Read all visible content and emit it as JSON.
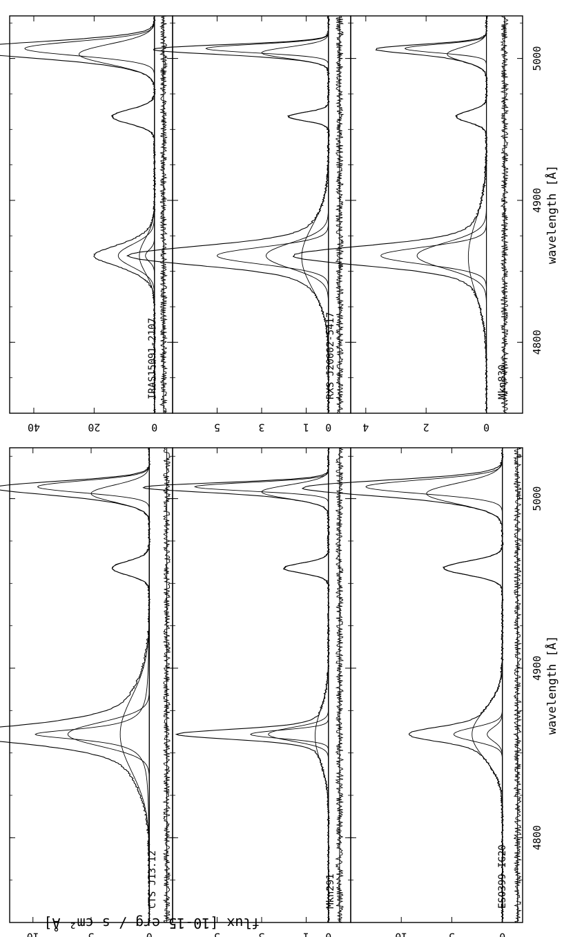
{
  "figure": {
    "y_axis_label": "flux  [10-15   erg  /  s cm² Å]",
    "x_axis_label": "wavelength [Å]"
  },
  "chart_data": [
    {
      "type": "line",
      "panel_label": "CTS J13.12",
      "xlabel": "wavelength [Å]",
      "xlim": [
        4750,
        5030
      ],
      "xticks": [
        4800,
        4900,
        5000
      ],
      "xticklabels": [
        "4800",
        "4900",
        "5000"
      ],
      "ylim": [
        -2,
        12
      ],
      "yticks": [
        0,
        5,
        10
      ],
      "yticklabels": [
        "0",
        "5",
        "10"
      ],
      "offset": -1.5,
      "lines": [
        {
          "center": 4861,
          "amp": 9.8,
          "sigma": 4,
          "shape": "lorentz"
        },
        {
          "center": 4861,
          "amp": 7.0,
          "sigma": 7,
          "shape": "gauss"
        },
        {
          "center": 4861,
          "amp": 2.5,
          "sigma": 22,
          "shape": "gauss"
        },
        {
          "center": 4959,
          "amp": 3.2,
          "sigma": 4,
          "shape": "gauss"
        },
        {
          "center": 5007,
          "amp": 9.6,
          "sigma": 3.5,
          "shape": "gauss"
        },
        {
          "center": 5003,
          "amp": 5.0,
          "sigma": 5,
          "shape": "gauss"
        }
      ]
    },
    {
      "type": "line",
      "panel_label": "Mkn291",
      "xlabel": "wavelength [Å]",
      "xlim": [
        4750,
        5030
      ],
      "xticks": [
        4800,
        4900,
        5000
      ],
      "xticklabels": [
        "4800",
        "4900",
        "5000"
      ],
      "ylim": [
        -1,
        7
      ],
      "yticks": [
        0,
        1,
        3,
        5
      ],
      "yticklabels": [
        "0",
        "1",
        "3",
        "5"
      ],
      "offset": -0.5,
      "lines": [
        {
          "center": 4861,
          "amp": 3.5,
          "sigma": 2.5,
          "shape": "gauss"
        },
        {
          "center": 4861,
          "amp": 2.7,
          "sigma": 4,
          "shape": "gauss"
        },
        {
          "center": 4860,
          "amp": 0.6,
          "sigma": 15,
          "shape": "gauss"
        },
        {
          "center": 4959,
          "amp": 2.0,
          "sigma": 3,
          "shape": "gauss"
        },
        {
          "center": 5007,
          "amp": 6.0,
          "sigma": 2.5,
          "shape": "gauss"
        },
        {
          "center": 5004,
          "amp": 3.0,
          "sigma": 4,
          "shape": "gauss"
        }
      ]
    },
    {
      "type": "line",
      "panel_label": "ESO399-IG20",
      "xlabel": "wavelength [Å]",
      "xlim": [
        4750,
        5030
      ],
      "xticks": [
        4800,
        4900,
        5000
      ],
      "xticklabels": [
        "4800",
        "4900",
        "5000"
      ],
      "ylim": [
        -2,
        15
      ],
      "yticks": [
        0,
        5,
        10
      ],
      "yticklabels": [
        "0",
        "5",
        "10"
      ],
      "offset": -1.5,
      "lines": [
        {
          "center": 4861,
          "amp": 4.8,
          "sigma": 4,
          "shape": "gauss"
        },
        {
          "center": 4861,
          "amp": 3.0,
          "sigma": 14,
          "shape": "gauss"
        },
        {
          "center": 4861,
          "amp": 1.5,
          "sigma": 4,
          "shape": "gauss"
        },
        {
          "center": 4959,
          "amp": 5.8,
          "sigma": 4,
          "shape": "gauss"
        },
        {
          "center": 5007,
          "amp": 13.5,
          "sigma": 4,
          "shape": "gauss"
        },
        {
          "center": 5003,
          "amp": 7.5,
          "sigma": 6,
          "shape": "gauss"
        }
      ]
    },
    {
      "type": "line",
      "panel_label": "IRAS15091-2107",
      "xlabel": "wavelength [Å]",
      "xlim": [
        4750,
        5030
      ],
      "xticks": [
        4800,
        4900,
        5000
      ],
      "xticklabels": [
        "4800",
        "4900",
        "5000"
      ],
      "ylim": [
        -6,
        48
      ],
      "yticks": [
        0,
        20,
        40
      ],
      "yticklabels": [
        "0",
        "20",
        "40"
      ],
      "offset": -3,
      "lines": [
        {
          "center": 4861,
          "amp": 12.0,
          "sigma": 8,
          "shape": "gauss"
        },
        {
          "center": 4861,
          "amp": 5.0,
          "sigma": 12,
          "shape": "gauss"
        },
        {
          "center": 4861,
          "amp": 3.0,
          "sigma": 4,
          "shape": "gauss"
        },
        {
          "center": 4959,
          "amp": 14.0,
          "sigma": 5,
          "shape": "gauss"
        },
        {
          "center": 5007,
          "amp": 43.0,
          "sigma": 5,
          "shape": "gauss"
        },
        {
          "center": 5003,
          "amp": 25.0,
          "sigma": 7,
          "shape": "gauss"
        }
      ]
    },
    {
      "type": "line",
      "panel_label": "RXS J20002-5417",
      "xlabel": "wavelength [Å]",
      "xlim": [
        4750,
        5030
      ],
      "xticks": [
        4800,
        4900,
        5000
      ],
      "xticklabels": [
        "4800",
        "4900",
        "5000"
      ],
      "ylim": [
        -1,
        7
      ],
      "yticks": [
        0,
        1,
        3,
        5
      ],
      "yticklabels": [
        "0",
        "1",
        "3",
        "5"
      ],
      "offset": -0.5,
      "lines": [
        {
          "center": 4861,
          "amp": 5.0,
          "sigma": 6,
          "shape": "gauss"
        },
        {
          "center": 4861,
          "amp": 2.8,
          "sigma": 9,
          "shape": "gauss"
        },
        {
          "center": 4860,
          "amp": 1.2,
          "sigma": 22,
          "shape": "gauss"
        },
        {
          "center": 4959,
          "amp": 1.8,
          "sigma": 3,
          "shape": "gauss"
        },
        {
          "center": 5007,
          "amp": 5.5,
          "sigma": 3,
          "shape": "gauss"
        },
        {
          "center": 5004,
          "amp": 3.0,
          "sigma": 4,
          "shape": "gauss"
        }
      ]
    },
    {
      "type": "line",
      "panel_label": "Mkn830",
      "xlabel": "wavelength [Å]",
      "xlim": [
        4750,
        5030
      ],
      "xticks": [
        4800,
        4900,
        5000
      ],
      "xticklabels": [
        "4800",
        "4900",
        "5000"
      ],
      "ylim": [
        -1.2,
        4.5
      ],
      "yticks": [
        0,
        2,
        4
      ],
      "yticklabels": [
        "0",
        "2",
        "4"
      ],
      "offset": -0.6,
      "lines": [
        {
          "center": 4861,
          "amp": 3.5,
          "sigma": 6,
          "shape": "gauss"
        },
        {
          "center": 4861,
          "amp": 2.3,
          "sigma": 9,
          "shape": "gauss"
        },
        {
          "center": 4860,
          "amp": 0.6,
          "sigma": 25,
          "shape": "gauss"
        },
        {
          "center": 4959,
          "amp": 1.0,
          "sigma": 4,
          "shape": "gauss"
        },
        {
          "center": 5007,
          "amp": 2.7,
          "sigma": 3,
          "shape": "gauss"
        },
        {
          "center": 5003,
          "amp": 1.3,
          "sigma": 5,
          "shape": "gauss"
        }
      ]
    }
  ]
}
